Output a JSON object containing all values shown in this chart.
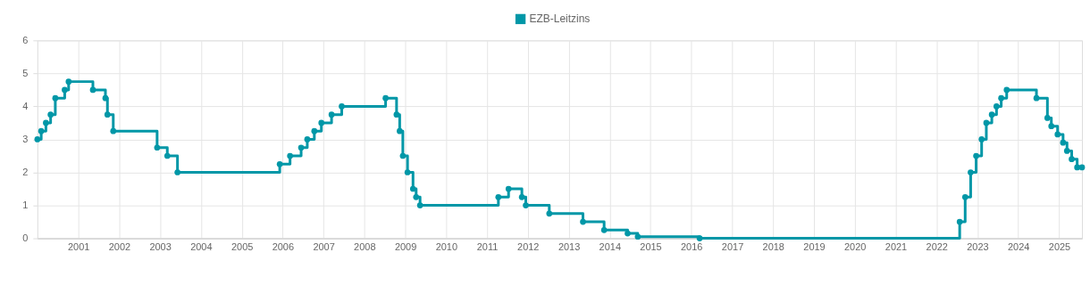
{
  "chart_data": {
    "type": "step",
    "x": [
      "2000-01-01",
      "2000-02-04",
      "2000-03-17",
      "2000-04-28",
      "2000-06-09",
      "2000-09-01",
      "2000-10-06",
      "2001-05-11",
      "2001-08-31",
      "2001-09-18",
      "2001-11-09",
      "2002-12-06",
      "2003-03-07",
      "2003-06-06",
      "2005-12-06",
      "2006-03-08",
      "2006-06-15",
      "2006-08-09",
      "2006-10-11",
      "2006-12-13",
      "2007-03-14",
      "2007-06-13",
      "2008-07-09",
      "2008-10-15",
      "2008-11-12",
      "2008-12-10",
      "2009-01-21",
      "2009-03-11",
      "2009-04-08",
      "2009-05-13",
      "2011-04-13",
      "2011-07-13",
      "2011-11-09",
      "2011-12-14",
      "2012-07-11",
      "2013-05-08",
      "2013-11-13",
      "2014-06-11",
      "2014-09-10",
      "2016-03-16",
      "2022-07-27",
      "2022-09-14",
      "2022-11-02",
      "2022-12-21",
      "2023-02-08",
      "2023-03-22",
      "2023-05-10",
      "2023-06-21",
      "2023-08-02",
      "2023-09-20",
      "2024-06-12",
      "2024-09-18",
      "2024-10-23",
      "2024-12-18",
      "2025-02-05",
      "2025-03-12",
      "2025-04-23",
      "2025-06-11",
      "2025-07-24"
    ],
    "series": [
      {
        "name": "EZB-Leitzins",
        "color": "#0097a7",
        "values": [
          3.0,
          3.25,
          3.5,
          3.75,
          4.25,
          4.5,
          4.75,
          4.5,
          4.25,
          3.75,
          3.25,
          2.75,
          2.5,
          2.0,
          2.25,
          2.5,
          2.75,
          3.0,
          3.25,
          3.5,
          3.75,
          4.0,
          4.25,
          3.75,
          3.25,
          2.5,
          2.0,
          1.5,
          1.25,
          1.0,
          1.25,
          1.5,
          1.25,
          1.0,
          0.75,
          0.5,
          0.25,
          0.15,
          0.05,
          0.0,
          0.5,
          1.25,
          2.0,
          2.5,
          3.0,
          3.5,
          3.75,
          4.0,
          4.25,
          4.5,
          4.25,
          3.65,
          3.4,
          3.15,
          2.9,
          2.65,
          2.4,
          2.15,
          2.15
        ]
      }
    ],
    "xlim": [
      "2000-01-01",
      "2025-07-24"
    ],
    "xticks": [
      {
        "value": "2000",
        "label": null
      },
      {
        "value": "2001",
        "label": "2001"
      },
      {
        "value": "2002",
        "label": "2002"
      },
      {
        "value": "2003",
        "label": "2003"
      },
      {
        "value": "2004",
        "label": "2004"
      },
      {
        "value": "2005",
        "label": "2005"
      },
      {
        "value": "2006",
        "label": "2006"
      },
      {
        "value": "2007",
        "label": "2007"
      },
      {
        "value": "2008",
        "label": "2008"
      },
      {
        "value": "2009",
        "label": "2009"
      },
      {
        "value": "2010",
        "label": "2010"
      },
      {
        "value": "2011",
        "label": "2011"
      },
      {
        "value": "2012",
        "label": "2012"
      },
      {
        "value": "2013",
        "label": "2013"
      },
      {
        "value": "2014",
        "label": "2014"
      },
      {
        "value": "2015",
        "label": "2015"
      },
      {
        "value": "2016",
        "label": "2016"
      },
      {
        "value": "2017",
        "label": "2017"
      },
      {
        "value": "2018",
        "label": "2018"
      },
      {
        "value": "2019",
        "label": "2019"
      },
      {
        "value": "2020",
        "label": "2020"
      },
      {
        "value": "2021",
        "label": "2021"
      },
      {
        "value": "2022",
        "label": "2022"
      },
      {
        "value": "2023",
        "label": "2023"
      },
      {
        "value": "2024",
        "label": "2024"
      },
      {
        "value": "2025",
        "label": "2025"
      }
    ],
    "ylim": [
      0,
      6
    ],
    "yticks": [
      0,
      1,
      2,
      3,
      4,
      5,
      6
    ],
    "grid": true,
    "legend": "top",
    "marker": "circle",
    "line_style": "solid"
  }
}
